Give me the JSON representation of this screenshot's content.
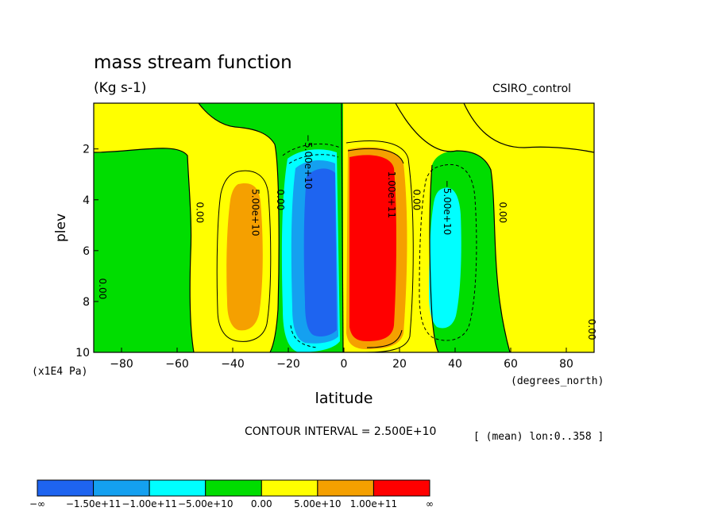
{
  "header": {
    "title": "mass stream function",
    "units": "(Kg s-1)",
    "dataset": "CSIRO_control"
  },
  "footer": {
    "contour_interval": "CONTOUR INTERVAL = 2.500E+10",
    "region": "[ (mean) lon:0..358 ]"
  },
  "colors": {
    "neg_inf_to_m150": "#1e64f0",
    "m150_to_m100": "#14a0f0",
    "m100_to_m50": "#00ffff",
    "m50_to_0": "#00dd00",
    "0_to_50": "#ffff00",
    "50_to_100": "#f5a000",
    "100_to_inf": "#ff0000"
  },
  "chart_data": {
    "type": "heatmap",
    "title": "mass stream function",
    "subtitle": "(Kg s-1)",
    "xlabel": "latitude",
    "xunits": "(degrees_north)",
    "ylabel": "plev",
    "yunits": "(x1E4 Pa)",
    "xlim": [
      -90,
      90
    ],
    "ylim": [
      10,
      0.2
    ],
    "y_inverted": true,
    "xticks": [
      -80,
      -60,
      -40,
      -20,
      0,
      20,
      40,
      60,
      80
    ],
    "xtick_labels": [
      "−80",
      "−60",
      "−40",
      "−20",
      "0",
      "20",
      "40",
      "60",
      "80"
    ],
    "yticks": [
      2,
      4,
      6,
      8,
      10
    ],
    "ytick_labels": [
      "2",
      "4",
      "6",
      "8",
      "10"
    ],
    "contour_levels": [
      -150000000000.0,
      -100000000000.0,
      -50000000000.0,
      0,
      50000000000.0,
      100000000000.0
    ],
    "contour_interval": 25000000000.0,
    "colorbar": {
      "labels": [
        "−∞",
        "−1.50e+11",
        "−1.00e+11",
        "−5.00e+10",
        "0.00",
        "5.00e+10",
        "1.00e+11",
        "∞"
      ],
      "colors": [
        "#1e64f0",
        "#14a0f0",
        "#00ffff",
        "#00dd00",
        "#ffff00",
        "#f5a000",
        "#ff0000"
      ]
    },
    "contour_labels": [
      {
        "text": "5.00e+10",
        "lat": -33,
        "plev": 4.5
      },
      {
        "text": "0.00",
        "lat": -53,
        "plev": 4.5
      },
      {
        "text": "0.00",
        "lat": -24,
        "plev": 4.0
      },
      {
        "text": "−5.00e+10",
        "lat": -14,
        "plev": 2.5
      },
      {
        "text": "0.00",
        "lat": 25,
        "plev": 4.0
      },
      {
        "text": "1.00e+11",
        "lat": 16,
        "plev": 3.8
      },
      {
        "text": "−5.00e+10",
        "lat": 36,
        "plev": 4.3
      },
      {
        "text": "0.00",
        "lat": 56,
        "plev": 4.5
      },
      {
        "text": "0.00",
        "lat": -88,
        "plev": 7.5
      },
      {
        "text": "0.00",
        "lat": 88,
        "plev": 9.1
      }
    ],
    "cells": [
      {
        "name": "southern-midlat-cell",
        "sign": "positive",
        "center_lat": -34,
        "peak_plev": 6.5,
        "peak_band": "5.00e+10 to 1.00e+11"
      },
      {
        "name": "southern-hadley-cell",
        "sign": "negative",
        "center_lat": -8,
        "peak_plev": 5.5,
        "peak_band": "< -1.50e+11"
      },
      {
        "name": "northern-hadley-cell",
        "sign": "positive",
        "center_lat": 8,
        "peak_plev": 5.5,
        "peak_band": "> 1.00e+11"
      },
      {
        "name": "northern-midlat-cell",
        "sign": "negative",
        "center_lat": 36,
        "peak_plev": 6.0,
        "peak_band": "-1.00e+11 to -5.00e+10"
      }
    ]
  }
}
